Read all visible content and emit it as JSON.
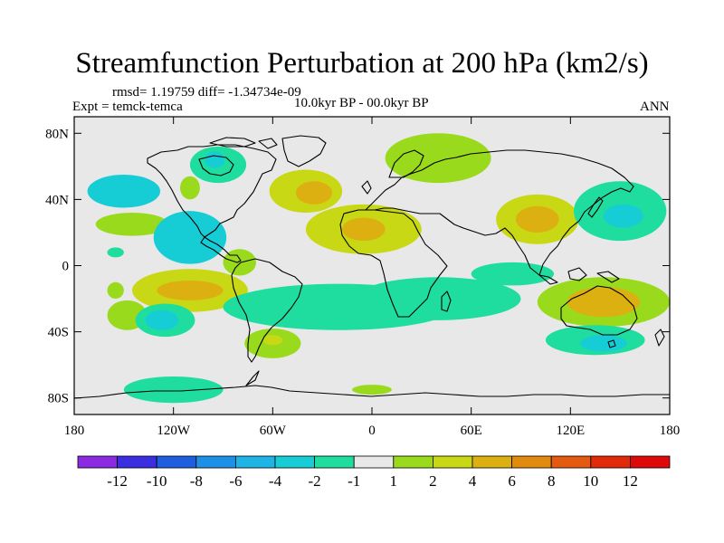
{
  "title": "Streamfunction Perturbation at 200 hPa (km2/s)",
  "stats_line": "rmsd= 1.19759 diff= -1.34734e-09",
  "expt_line": "Expt = temck-temca",
  "period_line": "10.0kyr BP - 00.0kyr BP",
  "season": "ANN",
  "colors": {
    "land_bg": "#e8e8e8",
    "coast": "#000000"
  },
  "chart_data": {
    "type": "heatmap",
    "title": "Streamfunction Perturbation at 200 hPa (km2/s)",
    "x_axis": {
      "range": [
        -180,
        180
      ],
      "ticks": [
        -180,
        -120,
        -60,
        0,
        60,
        120,
        180
      ],
      "tick_labels": [
        "180",
        "120W",
        "60W",
        "0",
        "60E",
        "120E",
        "180"
      ]
    },
    "y_axis": {
      "range": [
        -90,
        90
      ],
      "ticks": [
        80,
        40,
        0,
        -40,
        -80
      ],
      "tick_labels": [
        "80N",
        "40N",
        "0",
        "40S",
        "80S"
      ]
    },
    "colorbar": {
      "levels": [
        -12,
        -10,
        -8,
        -6,
        -4,
        -2,
        -1,
        1,
        2,
        4,
        6,
        8,
        10,
        12
      ],
      "labels": [
        "-12",
        "-10",
        "-8",
        "-6",
        "-4",
        "-2",
        "-1",
        "1",
        "2",
        "4",
        "6",
        "8",
        "10",
        "12"
      ],
      "colors": [
        "#8a2be2",
        "#3b2ee0",
        "#1e5fe0",
        "#1e90e6",
        "#1eb4e6",
        "#16cdd6",
        "#1fdc9f",
        "#e8e8e8",
        "#9ada1c",
        "#c8d814",
        "#dcb010",
        "#e08a10",
        "#e45a10",
        "#e02a0a",
        "#dc0a0a"
      ]
    },
    "anomalies": [
      {
        "lon": -150,
        "lat": 45,
        "rx": 22,
        "ry": 10,
        "value": -3
      },
      {
        "lon": -110,
        "lat": 47,
        "rx": 6,
        "ry": 7,
        "value": 1.5
      },
      {
        "lon": -145,
        "lat": 25,
        "rx": 22,
        "ry": 7,
        "value": 1.5
      },
      {
        "lon": -155,
        "lat": 8,
        "rx": 5,
        "ry": 3,
        "value": -1.5
      },
      {
        "lon": -93,
        "lat": 61,
        "rx": 17,
        "ry": 11,
        "value": -1.5
      },
      {
        "lon": -95,
        "lat": 64,
        "rx": 6,
        "ry": 5,
        "value": -2.5
      },
      {
        "lon": -110,
        "lat": 17,
        "rx": 22,
        "ry": 16,
        "value": -2.5
      },
      {
        "lon": -112,
        "lat": 15,
        "rx": 10,
        "ry": 8,
        "value": -3.5
      },
      {
        "lon": -110,
        "lat": -15,
        "rx": 35,
        "ry": 13,
        "value": 3
      },
      {
        "lon": -110,
        "lat": -15,
        "rx": 20,
        "ry": 6,
        "value": 4
      },
      {
        "lon": -155,
        "lat": -15,
        "rx": 5,
        "ry": 5,
        "value": 1.5
      },
      {
        "lon": -148,
        "lat": -30,
        "rx": 12,
        "ry": 9,
        "value": 1.5
      },
      {
        "lon": -125,
        "lat": -33,
        "rx": 18,
        "ry": 10,
        "value": -2
      },
      {
        "lon": -127,
        "lat": -33,
        "rx": 10,
        "ry": 6,
        "value": -3
      },
      {
        "lon": -80,
        "lat": 2,
        "rx": 10,
        "ry": 8,
        "value": 1.5
      },
      {
        "lon": -40,
        "lat": 45,
        "rx": 22,
        "ry": 13,
        "value": 2
      },
      {
        "lon": -35,
        "lat": 44,
        "rx": 11,
        "ry": 7,
        "value": 4
      },
      {
        "lon": -5,
        "lat": 22,
        "rx": 35,
        "ry": 15,
        "value": 2
      },
      {
        "lon": -5,
        "lat": 22,
        "rx": 13,
        "ry": 7,
        "value": 4
      },
      {
        "lon": 40,
        "lat": 65,
        "rx": 32,
        "ry": 15,
        "value": 1.5
      },
      {
        "lon": 30,
        "lat": 67,
        "rx": 10,
        "ry": 6,
        "value": 1.5
      },
      {
        "lon": -20,
        "lat": -25,
        "rx": 70,
        "ry": 14,
        "value": -1.5
      },
      {
        "lon": 40,
        "lat": -20,
        "rx": 50,
        "ry": 13,
        "value": -1.5
      },
      {
        "lon": 85,
        "lat": -5,
        "rx": 25,
        "ry": 7,
        "value": -1.5
      },
      {
        "lon": -60,
        "lat": -47,
        "rx": 17,
        "ry": 9,
        "value": 1.5
      },
      {
        "lon": -60,
        "lat": -45,
        "rx": 6,
        "ry": 3,
        "value": 3
      },
      {
        "lon": -120,
        "lat": -75,
        "rx": 30,
        "ry": 8,
        "value": -1.5
      },
      {
        "lon": 0,
        "lat": -75,
        "rx": 12,
        "ry": 3,
        "value": 1.5
      },
      {
        "lon": 100,
        "lat": 28,
        "rx": 25,
        "ry": 15,
        "value": 2
      },
      {
        "lon": 100,
        "lat": 28,
        "rx": 13,
        "ry": 8,
        "value": 4
      },
      {
        "lon": 150,
        "lat": 33,
        "rx": 28,
        "ry": 18,
        "value": -2
      },
      {
        "lon": 152,
        "lat": 30,
        "rx": 12,
        "ry": 7,
        "value": -3
      },
      {
        "lon": 140,
        "lat": -22,
        "rx": 40,
        "ry": 15,
        "value": 1.5
      },
      {
        "lon": 140,
        "lat": -22,
        "rx": 22,
        "ry": 9,
        "value": 4
      },
      {
        "lon": 135,
        "lat": -45,
        "rx": 30,
        "ry": 9,
        "value": -1.5
      },
      {
        "lon": 140,
        "lat": -47,
        "rx": 14,
        "ry": 5,
        "value": -2.5
      }
    ]
  }
}
